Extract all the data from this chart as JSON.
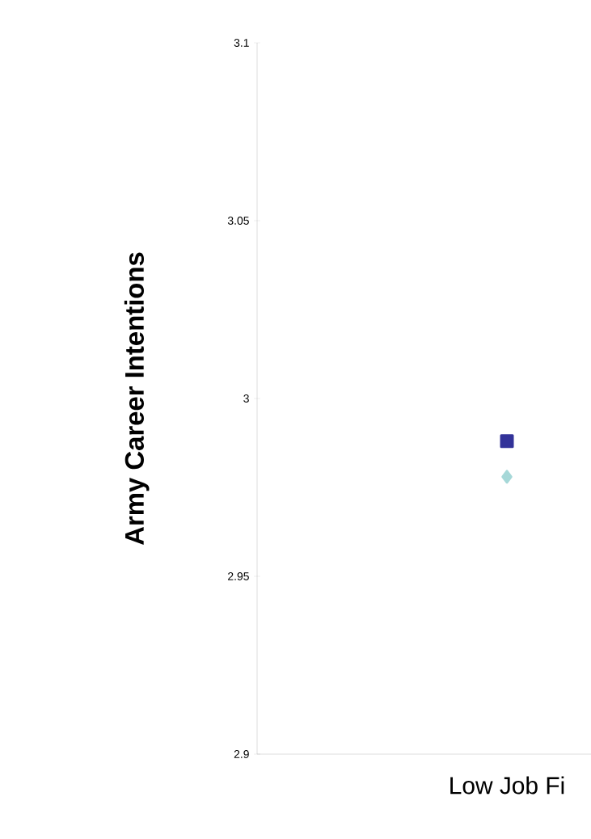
{
  "chart_data": {
    "type": "line",
    "ylabel": "Army Career Intentions",
    "categories": [
      "Low Job Fi"
    ],
    "series": [
      {
        "color": "#333399",
        "marker": "square",
        "values": [
          2.988
        ]
      },
      {
        "color": "#a6d8d8",
        "marker": "diamond",
        "values": [
          2.978
        ]
      }
    ],
    "ylim": [
      2.9,
      3.1
    ],
    "yticks": [
      2.9,
      2.95,
      3,
      3.05,
      3.1
    ],
    "grid": false
  }
}
